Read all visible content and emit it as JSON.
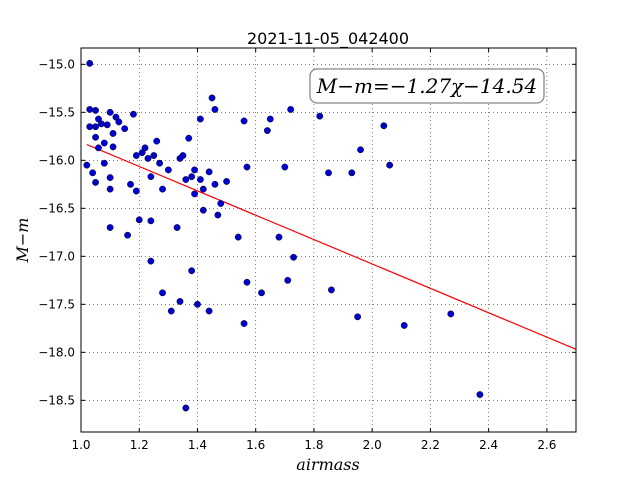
{
  "chart_data": {
    "type": "scatter",
    "title": "2021-11-05_042400",
    "xlabel": "airmass",
    "ylabel": "M−m",
    "xlim": [
      1.0,
      2.7
    ],
    "ylim": [
      -18.83,
      -14.83
    ],
    "y_inverted": true,
    "grid": true,
    "xticks": [
      1.0,
      1.2,
      1.4,
      1.6,
      1.8,
      2.0,
      2.2,
      2.4,
      2.6
    ],
    "xtick_labels": [
      "1.0",
      "1.2",
      "1.4",
      "1.6",
      "1.8",
      "2.0",
      "2.2",
      "2.4",
      "2.6"
    ],
    "yticks": [
      -15.0,
      -15.5,
      -16.0,
      -16.5,
      -17.0,
      -17.5,
      -18.0,
      -18.5
    ],
    "ytick_labels": [
      "−15.0",
      "−15.5",
      "−16.0",
      "−16.5",
      "−17.0",
      "−17.5",
      "−18.0",
      "−18.5"
    ],
    "annotation": "M−m=−1.27χ−14.54",
    "colors": {
      "points": "#0000cc",
      "fit": "#ff0000"
    },
    "fit_line": {
      "slope": -1.27,
      "intercept": -14.54,
      "x": [
        1.02,
        2.7
      ]
    },
    "points": [
      [
        1.03,
        -14.99
      ],
      [
        1.03,
        -15.47
      ],
      [
        1.05,
        -15.48
      ],
      [
        1.03,
        -15.65
      ],
      [
        1.05,
        -15.65
      ],
      [
        1.06,
        -15.57
      ],
      [
        1.07,
        -15.62
      ],
      [
        1.05,
        -15.76
      ],
      [
        1.06,
        -15.87
      ],
      [
        1.02,
        -16.05
      ],
      [
        1.04,
        -16.13
      ],
      [
        1.05,
        -16.23
      ],
      [
        1.08,
        -15.82
      ],
      [
        1.09,
        -15.63
      ],
      [
        1.1,
        -15.5
      ],
      [
        1.11,
        -15.72
      ],
      [
        1.11,
        -15.86
      ],
      [
        1.12,
        -15.55
      ],
      [
        1.13,
        -15.6
      ],
      [
        1.15,
        -15.67
      ],
      [
        1.08,
        -16.03
      ],
      [
        1.1,
        -16.18
      ],
      [
        1.1,
        -16.3
      ],
      [
        1.17,
        -16.25
      ],
      [
        1.18,
        -15.52
      ],
      [
        1.19,
        -15.95
      ],
      [
        1.21,
        -15.92
      ],
      [
        1.22,
        -15.87
      ],
      [
        1.23,
        -15.98
      ],
      [
        1.25,
        -15.95
      ],
      [
        1.26,
        -15.8
      ],
      [
        1.27,
        -16.03
      ],
      [
        1.24,
        -16.17
      ],
      [
        1.19,
        -16.32
      ],
      [
        1.28,
        -16.3
      ],
      [
        1.3,
        -16.1
      ],
      [
        1.1,
        -16.7
      ],
      [
        1.16,
        -16.78
      ],
      [
        1.2,
        -16.62
      ],
      [
        1.24,
        -16.63
      ],
      [
        1.24,
        -17.05
      ],
      [
        1.28,
        -17.38
      ],
      [
        1.31,
        -17.57
      ],
      [
        1.33,
        -16.7
      ],
      [
        1.34,
        -15.98
      ],
      [
        1.35,
        -15.95
      ],
      [
        1.37,
        -15.77
      ],
      [
        1.36,
        -16.2
      ],
      [
        1.38,
        -16.17
      ],
      [
        1.39,
        -16.1
      ],
      [
        1.39,
        -16.35
      ],
      [
        1.41,
        -16.2
      ],
      [
        1.42,
        -16.3
      ],
      [
        1.42,
        -16.52
      ],
      [
        1.41,
        -15.57
      ],
      [
        1.44,
        -16.12
      ],
      [
        1.45,
        -15.35
      ],
      [
        1.46,
        -15.47
      ],
      [
        1.46,
        -16.25
      ],
      [
        1.47,
        -16.57
      ],
      [
        1.48,
        -16.45
      ],
      [
        1.5,
        -16.22
      ],
      [
        1.38,
        -17.15
      ],
      [
        1.34,
        -17.47
      ],
      [
        1.4,
        -17.5
      ],
      [
        1.44,
        -17.57
      ],
      [
        1.36,
        -18.58
      ],
      [
        1.54,
        -16.8
      ],
      [
        1.56,
        -15.59
      ],
      [
        1.57,
        -16.07
      ],
      [
        1.56,
        -17.7
      ],
      [
        1.57,
        -17.27
      ],
      [
        1.62,
        -17.38
      ],
      [
        1.64,
        -15.69
      ],
      [
        1.65,
        -15.57
      ],
      [
        1.68,
        -16.8
      ],
      [
        1.7,
        -16.07
      ],
      [
        1.71,
        -17.25
      ],
      [
        1.72,
        -15.47
      ],
      [
        1.73,
        -17.01
      ],
      [
        1.82,
        -15.54
      ],
      [
        1.85,
        -16.13
      ],
      [
        1.86,
        -17.35
      ],
      [
        1.93,
        -16.13
      ],
      [
        1.95,
        -17.63
      ],
      [
        1.96,
        -15.89
      ],
      [
        2.04,
        -15.64
      ],
      [
        2.06,
        -16.05
      ],
      [
        2.11,
        -17.72
      ],
      [
        2.27,
        -17.6
      ],
      [
        2.37,
        -18.44
      ]
    ]
  }
}
